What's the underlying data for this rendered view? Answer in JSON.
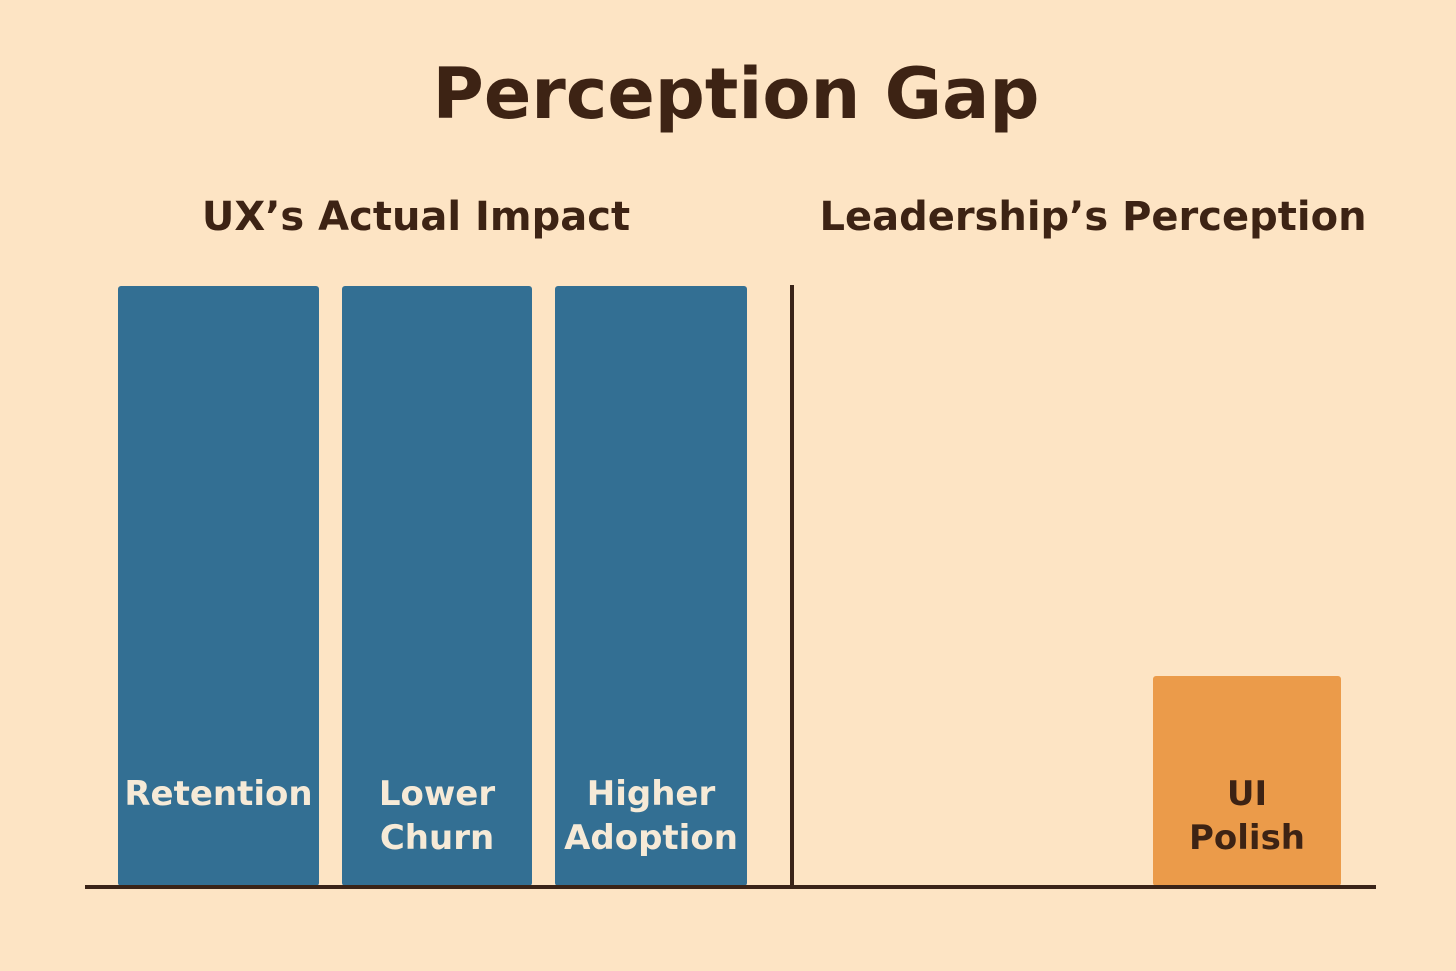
{
  "chart_data": {
    "type": "bar",
    "title": "Perception Gap",
    "panels": [
      {
        "title": "UX’s Actual Impact",
        "categories": [
          "Retention",
          "Lower Churn",
          "Higher Adoption"
        ],
        "label_lines": [
          [
            "Retention"
          ],
          [
            "Lower",
            "Churn"
          ],
          [
            "Higher",
            "Adoption"
          ]
        ],
        "values": [
          100,
          100,
          100
        ]
      },
      {
        "title": "Leadership’s Perception",
        "categories": [
          "UI Polish"
        ],
        "label_lines": [
          [
            "UI",
            "Polish"
          ]
        ],
        "values": [
          35
        ]
      }
    ],
    "ylim": [
      0,
      100
    ],
    "grid": false,
    "colors": {
      "actual": "#336f93",
      "perceived": "#eb9b4a",
      "axis": "#3a2418",
      "background": "#fde4c4",
      "actual_label": "#f6ead7",
      "perceived_label": "#3d2314"
    }
  }
}
